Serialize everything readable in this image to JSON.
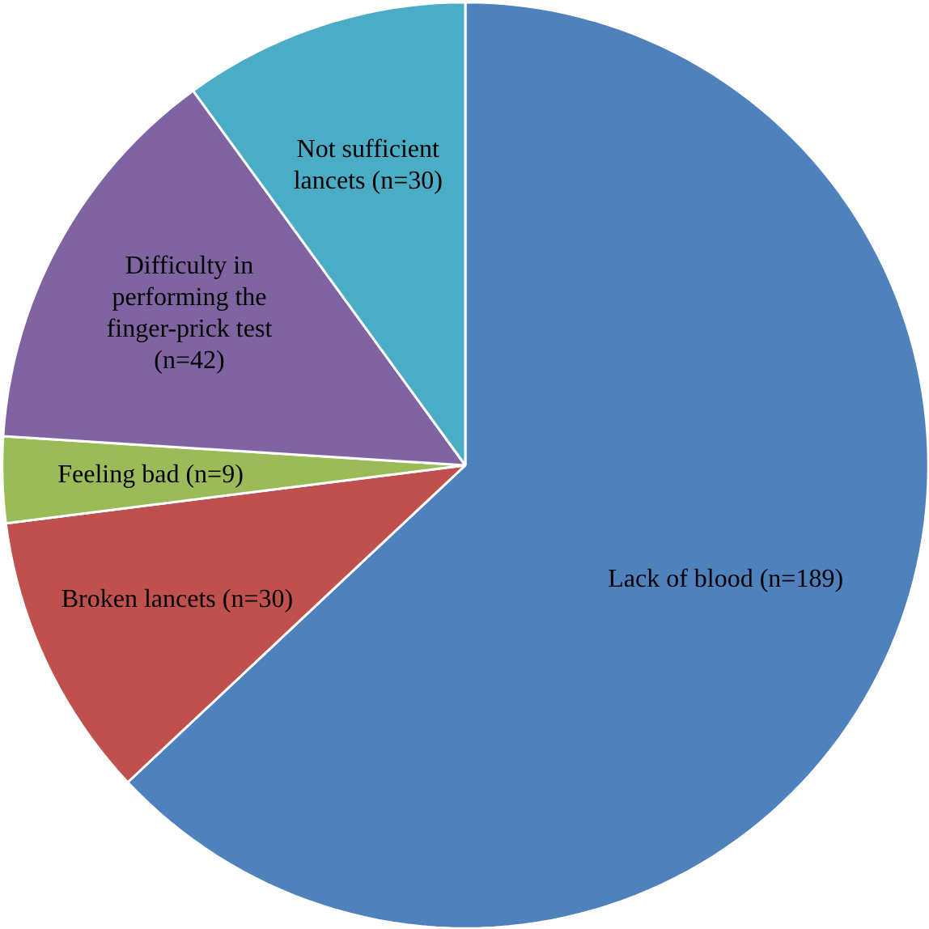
{
  "chart_data": {
    "type": "pie",
    "categories": [
      "Lack of blood  (n=189)",
      "Broken lancets  (n=30)",
      "Feeling bad (n=9)",
      "Difficulty in\nperforming the\nfinger-prick test\n(n=42)",
      "Not sufficient\nlancets (n=30)"
    ],
    "values": [
      189,
      30,
      9,
      42,
      30
    ],
    "colors": [
      "#4f81bd",
      "#c0504d",
      "#9bbb59",
      "#8064a2",
      "#4bacc6"
    ]
  }
}
